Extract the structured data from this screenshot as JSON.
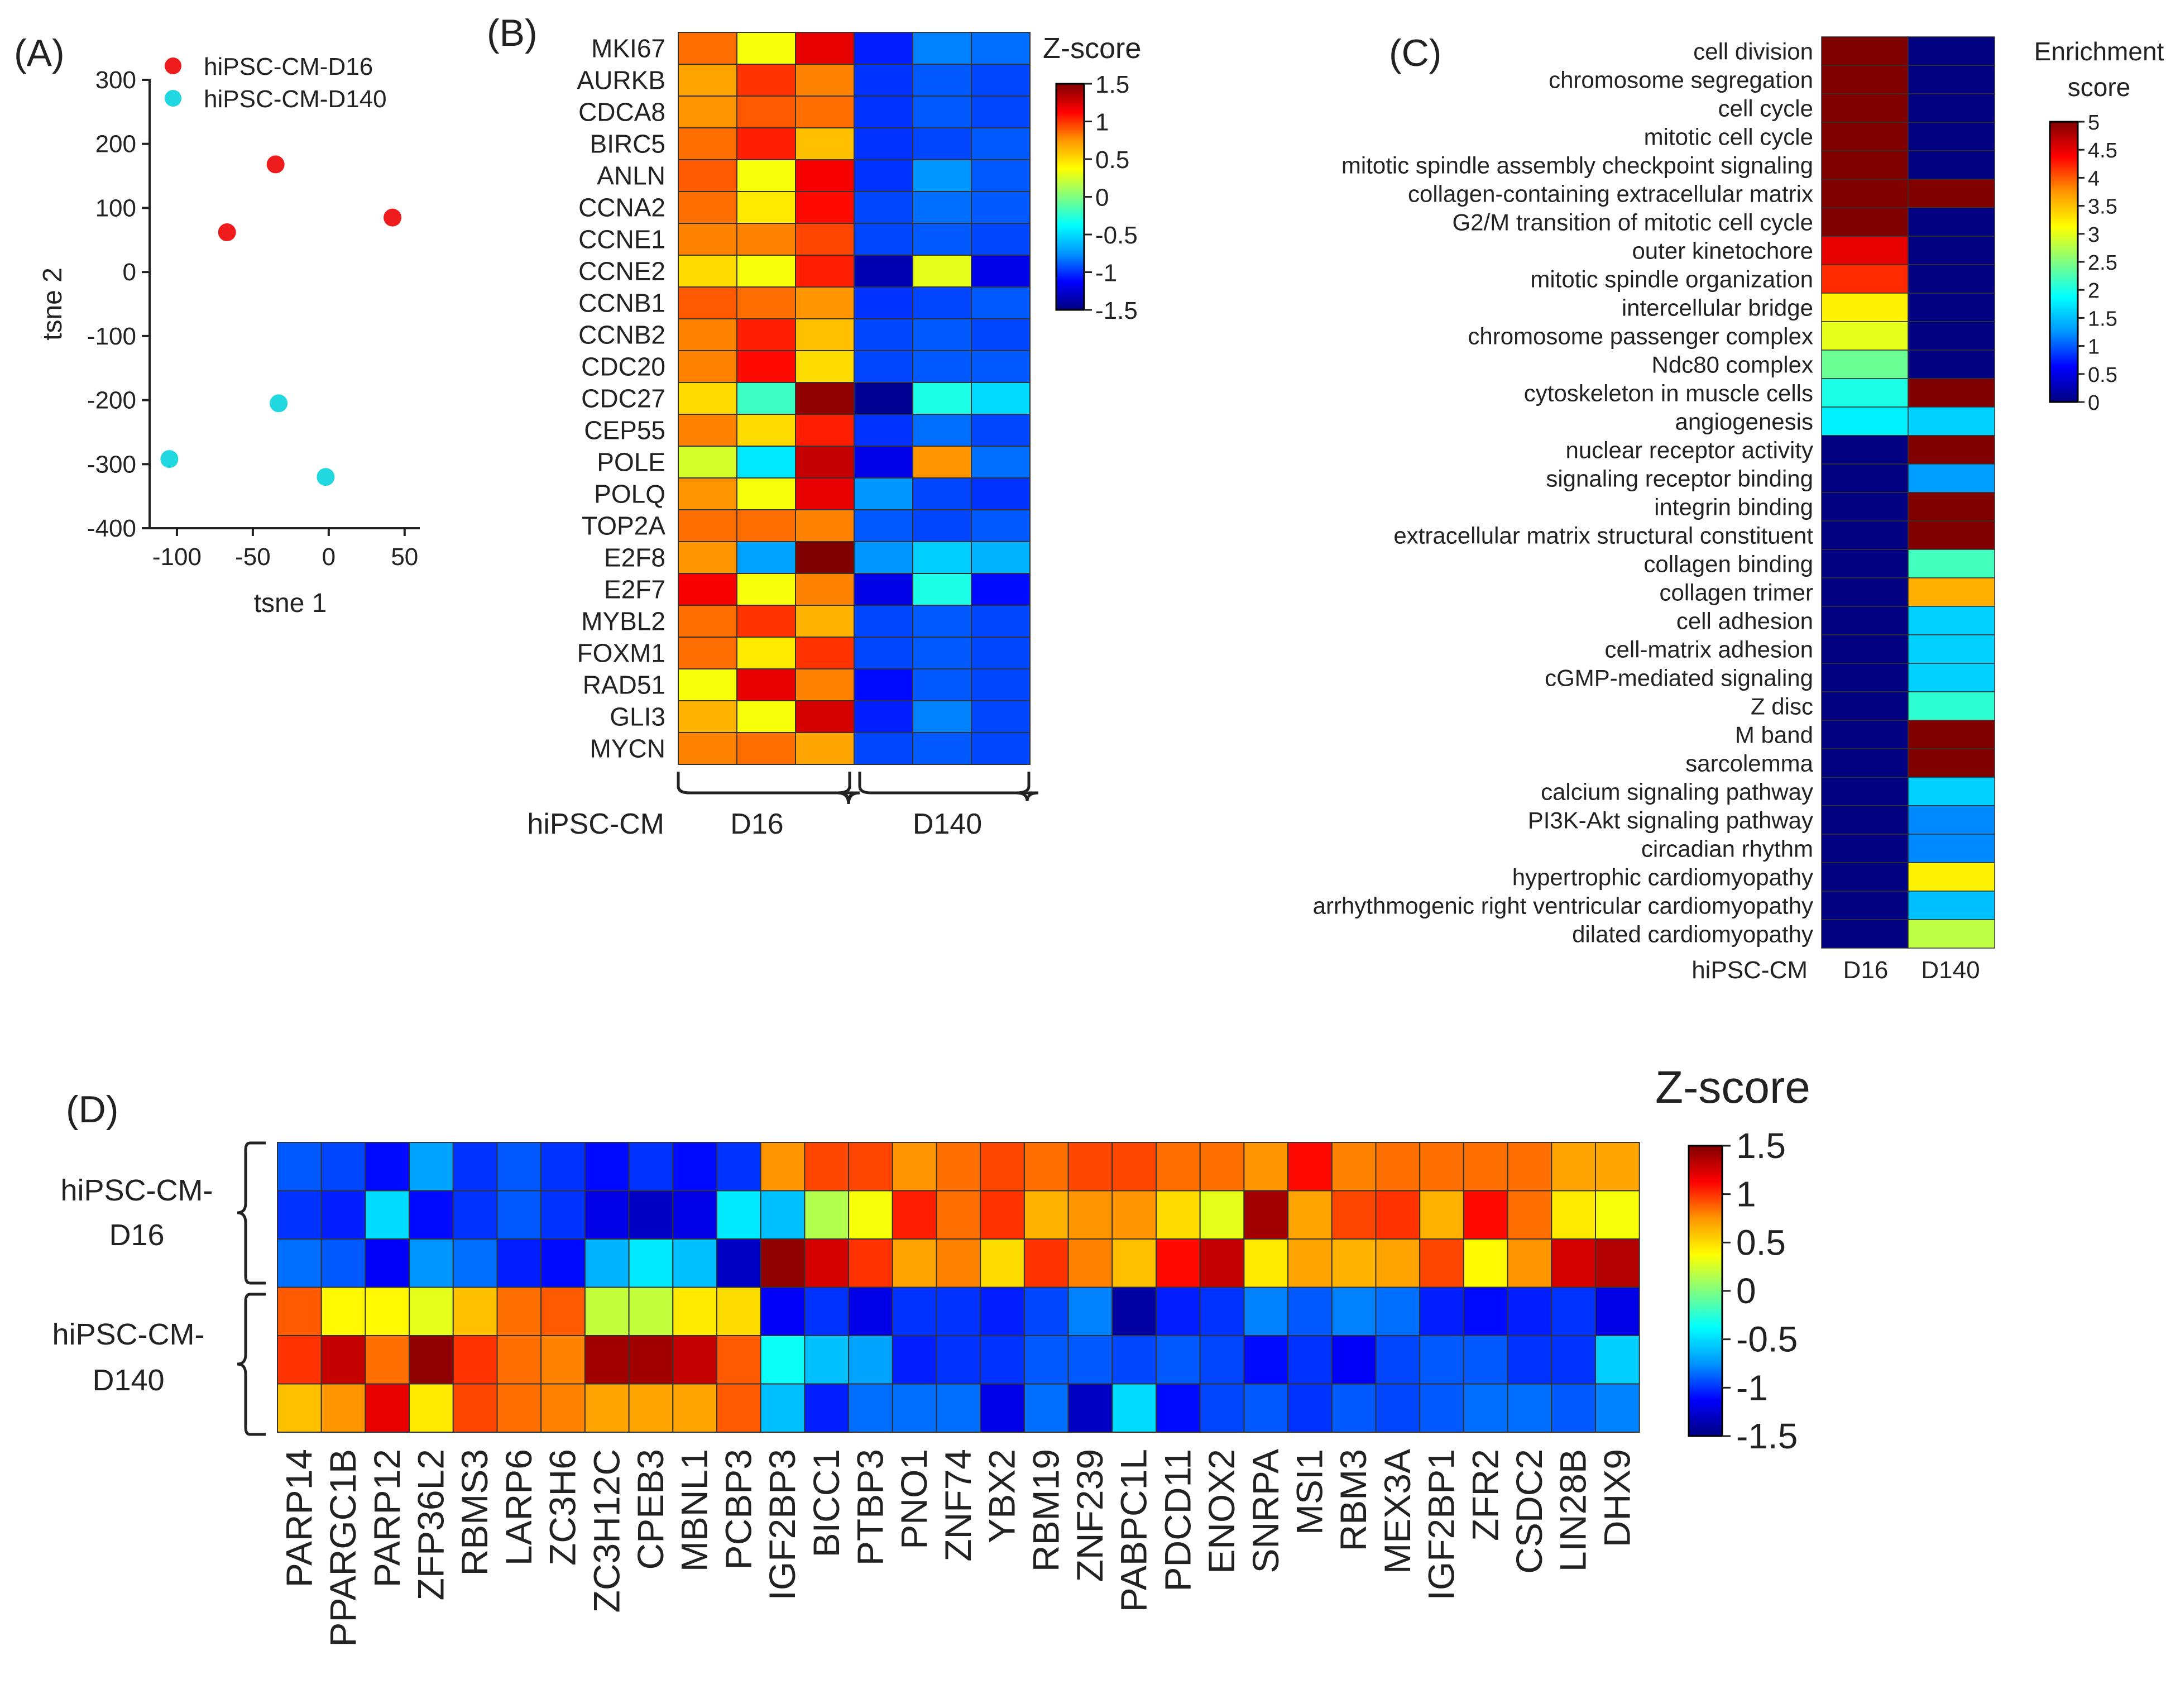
{
  "colors": {
    "heatmap_ramp": [
      "#000080",
      "#0000ff",
      "#0096ff",
      "#00ffff",
      "#80ff80",
      "#ffff00",
      "#ff9600",
      "#ff0000",
      "#800000"
    ],
    "d16_point": "#ee1c1c",
    "d140_point": "#22d8e0",
    "grid_line": "#333333"
  },
  "panels": {
    "A": {
      "label": "(A)",
      "legend": [
        "hiPSC-CM-D16",
        "hiPSC-CM-D140"
      ]
    },
    "B": {
      "label": "(B)",
      "colorbar_title": "Z-score",
      "group_axis_label": "hiPSC-CM",
      "groups": [
        "D16",
        "D140"
      ]
    },
    "C": {
      "label": "(C)",
      "colorbar_title_line1": "Enrichment",
      "colorbar_title_line2": "score",
      "axis_label": "hiPSC-CM",
      "columns": [
        "D16",
        "D140"
      ]
    },
    "D": {
      "label": "(D)",
      "colorbar_title": "Z-score",
      "groups": [
        {
          "line1": "hiPSC-CM-",
          "line2": "D16"
        },
        {
          "line1": "hiPSC-CM-",
          "line2": "D140"
        }
      ]
    }
  },
  "chart_data": [
    {
      "panel": "A",
      "type": "scatter",
      "xlabel": "tsne 1",
      "ylabel": "tsne 2",
      "xlim": [
        -118,
        60
      ],
      "ylim": [
        -400,
        300
      ],
      "xticks": [
        -100,
        -50,
        0,
        50
      ],
      "yticks": [
        300,
        200,
        100,
        0,
        -100,
        -200,
        -300,
        -400
      ],
      "series": [
        {
          "name": "hiPSC-CM-D16",
          "color": "#ee1c1c",
          "points": [
            [
              -67,
              62
            ],
            [
              -35,
              168
            ],
            [
              42,
              85
            ]
          ]
        },
        {
          "name": "hiPSC-CM-D140",
          "color": "#22d8e0",
          "points": [
            [
              -33,
              -205
            ],
            [
              -105,
              -292
            ],
            [
              -2,
              -320
            ]
          ]
        }
      ]
    },
    {
      "panel": "B",
      "type": "heatmap",
      "colorbar": {
        "min": -1.5,
        "max": 1.5,
        "ticks": [
          1.5,
          1,
          0.5,
          0,
          -0.5,
          -1,
          -1.5
        ]
      },
      "rows": [
        "MKI67",
        "AURKB",
        "CDCA8",
        "BIRC5",
        "ANLN",
        "CCNA2",
        "CCNE1",
        "CCNE2",
        "CCNB1",
        "CCNB2",
        "CDC20",
        "CDC27",
        "CEP55",
        "POLE",
        "POLQ",
        "TOP2A",
        "E2F8",
        "E2F7",
        "MYBL2",
        "FOXM1",
        "RAD51",
        "GLI3",
        "MYCN"
      ],
      "values": [
        [
          0.85,
          0.35,
          1.2,
          -1.05,
          -0.8,
          -0.85
        ],
        [
          0.7,
          1.0,
          0.8,
          -1.0,
          -0.9,
          -0.95
        ],
        [
          0.75,
          0.9,
          0.85,
          -1.0,
          -0.9,
          -0.95
        ],
        [
          0.85,
          1.05,
          0.6,
          -1.0,
          -0.95,
          -0.9
        ],
        [
          0.9,
          0.35,
          1.15,
          -1.0,
          -0.75,
          -0.9
        ],
        [
          0.85,
          0.45,
          1.1,
          -0.95,
          -0.85,
          -0.9
        ],
        [
          0.8,
          0.8,
          0.95,
          -0.95,
          -0.9,
          -0.95
        ],
        [
          0.5,
          0.35,
          1.05,
          -1.35,
          0.3,
          -1.2
        ],
        [
          0.9,
          0.85,
          0.75,
          -1.0,
          -0.95,
          -0.9
        ],
        [
          0.8,
          1.05,
          0.6,
          -0.95,
          -0.9,
          -0.95
        ],
        [
          0.8,
          1.1,
          0.5,
          -0.95,
          -0.9,
          -0.9
        ],
        [
          0.5,
          -0.2,
          1.45,
          -1.45,
          -0.3,
          -0.5
        ],
        [
          0.8,
          0.5,
          1.05,
          -1.0,
          -0.85,
          -0.95
        ],
        [
          0.25,
          -0.45,
          1.3,
          -1.2,
          0.75,
          -0.85
        ],
        [
          0.75,
          0.35,
          1.2,
          -0.75,
          -0.95,
          -1.0
        ],
        [
          0.85,
          0.85,
          0.8,
          -0.9,
          -0.95,
          -0.9
        ],
        [
          0.75,
          -0.7,
          1.5,
          -0.75,
          -0.55,
          -0.65
        ],
        [
          1.15,
          0.35,
          0.8,
          -1.2,
          -0.3,
          -1.1
        ],
        [
          0.85,
          1.0,
          0.65,
          -0.95,
          -0.9,
          -0.95
        ],
        [
          0.85,
          0.45,
          1.0,
          -0.95,
          -0.9,
          -0.95
        ],
        [
          0.35,
          1.2,
          0.8,
          -1.1,
          -0.9,
          -0.95
        ],
        [
          0.65,
          0.35,
          1.25,
          -1.05,
          -0.8,
          -0.95
        ],
        [
          0.8,
          0.85,
          0.7,
          -0.95,
          -0.9,
          -0.95
        ]
      ]
    },
    {
      "panel": "C",
      "type": "heatmap",
      "colorbar": {
        "min": 0,
        "max": 5,
        "ticks": [
          5,
          4.5,
          4,
          3.5,
          3,
          2.5,
          2,
          1.5,
          1,
          0.5,
          0
        ]
      },
      "rows": [
        "cell division",
        "chromosome segregation",
        "cell cycle",
        "mitotic cell cycle",
        "mitotic spindle assembly checkpoint signaling",
        "collagen-containing extracellular matrix",
        "G2/M transition of mitotic cell cycle",
        "outer kinetochore",
        "mitotic spindle organization",
        "intercellular bridge",
        "chromosome passenger complex",
        "Ndc80 complex",
        "cytoskeleton in muscle cells",
        "angiogenesis",
        "nuclear receptor activity",
        "signaling receptor binding",
        "integrin binding",
        "extracellular matrix structural constituent",
        "collagen binding",
        "collagen trimer",
        "cell adhesion",
        "cell-matrix adhesion",
        "cGMP-mediated signaling",
        "Z disc",
        "M band",
        "sarcolemma",
        "calcium signaling pathway",
        "PI3K-Akt signaling pathway",
        "circadian rhythm",
        "hypertrophic cardiomyopathy",
        "arrhythmogenic right ventricular cardiomyopathy",
        "dilated cardiomyopathy"
      ],
      "values": [
        [
          5,
          0
        ],
        [
          5,
          0
        ],
        [
          5,
          0
        ],
        [
          5,
          0
        ],
        [
          5,
          0
        ],
        [
          5,
          5
        ],
        [
          5,
          0
        ],
        [
          4.5,
          0
        ],
        [
          4.2,
          0
        ],
        [
          3.2,
          0
        ],
        [
          3.0,
          0
        ],
        [
          2.4,
          0
        ],
        [
          2.0,
          5
        ],
        [
          1.8,
          1.6
        ],
        [
          0,
          5
        ],
        [
          0,
          1.3
        ],
        [
          0,
          5
        ],
        [
          0,
          5
        ],
        [
          0,
          2.2
        ],
        [
          0,
          3.6
        ],
        [
          0,
          1.6
        ],
        [
          0,
          1.6
        ],
        [
          0,
          1.6
        ],
        [
          0,
          2.1
        ],
        [
          0,
          5
        ],
        [
          0,
          5
        ],
        [
          0,
          1.6
        ],
        [
          0,
          1.2
        ],
        [
          0,
          1.2
        ],
        [
          0,
          3.2
        ],
        [
          0,
          1.5
        ],
        [
          0,
          2.8
        ]
      ]
    },
    {
      "panel": "D",
      "type": "heatmap",
      "colorbar": {
        "min": -1.5,
        "max": 1.5,
        "ticks": [
          1.5,
          1,
          0.5,
          0,
          -0.5,
          -1,
          -1.5
        ]
      },
      "columns": [
        "PARP14",
        "PPARGC1B",
        "PARP12",
        "ZFP36L2",
        "RBMS3",
        "LARP6",
        "ZC3H6",
        "ZC3H12C",
        "CPEB3",
        "MBNL1",
        "PCBP3",
        "IGF2BP3",
        "BICC1",
        "PTBP3",
        "PNO1",
        "ZNF74",
        "YBX2",
        "RBM19",
        "ZNF239",
        "PABPC1L",
        "PDCD11",
        "ENOX2",
        "SNRPA",
        "MSI1",
        "RBM3",
        "MEX3A",
        "IGF2BP1",
        "ZFR2",
        "CSDC2",
        "LIN28B",
        "DHX9"
      ],
      "values": [
        [
          -0.9,
          -0.95,
          -1.1,
          -0.7,
          -1.0,
          -0.9,
          -1.0,
          -1.1,
          -1.0,
          -1.1,
          -1.0,
          0.75,
          0.95,
          0.95,
          0.75,
          0.85,
          0.95,
          0.85,
          0.95,
          0.95,
          0.85,
          0.85,
          0.75,
          1.1,
          0.8,
          0.85,
          0.85,
          0.85,
          0.85,
          0.7,
          0.7
        ],
        [
          -1.0,
          -1.05,
          -0.5,
          -1.1,
          -1.0,
          -0.9,
          -1.0,
          -1.2,
          -1.3,
          -1.2,
          -0.45,
          -0.6,
          0.15,
          0.35,
          1.05,
          0.85,
          1.0,
          0.65,
          0.75,
          0.75,
          0.5,
          0.3,
          1.4,
          0.7,
          0.95,
          1.0,
          0.65,
          1.1,
          0.85,
          0.45,
          0.35
        ],
        [
          -0.85,
          -0.9,
          -1.15,
          -0.75,
          -0.85,
          -1.05,
          -1.1,
          -0.65,
          -0.45,
          -0.6,
          -1.3,
          1.45,
          1.25,
          1.0,
          0.7,
          0.8,
          0.5,
          1.0,
          0.8,
          0.6,
          1.1,
          1.3,
          0.45,
          0.7,
          0.65,
          0.7,
          0.95,
          0.4,
          0.75,
          1.25,
          1.35
        ],
        [
          0.9,
          0.4,
          0.4,
          0.3,
          0.6,
          0.85,
          0.9,
          0.2,
          0.2,
          0.45,
          0.5,
          -1.15,
          -1.0,
          -1.2,
          -1.0,
          -1.0,
          -1.05,
          -0.95,
          -0.8,
          -1.4,
          -1.05,
          -1.0,
          -0.8,
          -0.9,
          -0.8,
          -0.85,
          -1.05,
          -1.1,
          -1.05,
          -1.0,
          -1.2
        ],
        [
          1.0,
          1.3,
          0.85,
          1.45,
          1.0,
          0.85,
          0.8,
          1.4,
          1.4,
          1.3,
          0.9,
          -0.35,
          -0.6,
          -0.7,
          -1.05,
          -1.0,
          -1.0,
          -0.9,
          -0.9,
          -0.95,
          -0.9,
          -0.95,
          -1.1,
          -1.0,
          -1.15,
          -0.95,
          -0.9,
          -0.9,
          -1.0,
          -1.0,
          -0.55
        ],
        [
          0.6,
          0.75,
          1.2,
          0.45,
          0.95,
          0.85,
          0.8,
          0.7,
          0.7,
          0.7,
          0.9,
          -0.6,
          -1.05,
          -0.85,
          -0.85,
          -0.85,
          -1.2,
          -0.85,
          -1.3,
          -0.5,
          -1.1,
          -0.95,
          -0.9,
          -1.0,
          -0.9,
          -0.95,
          -0.9,
          -0.85,
          -0.85,
          -0.9,
          -0.8
        ]
      ]
    }
  ]
}
